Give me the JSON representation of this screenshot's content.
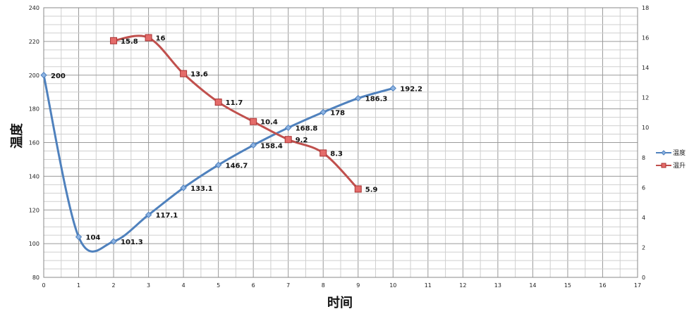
{
  "chart_data": {
    "type": "line",
    "xlabel": "时间",
    "ylabel": "温度",
    "xlim": [
      0,
      17
    ],
    "ylim": [
      80,
      240
    ],
    "y2lim": [
      0,
      18
    ],
    "x_ticks": [
      0,
      1,
      2,
      3,
      4,
      5,
      6,
      7,
      8,
      9,
      10,
      11,
      12,
      13,
      14,
      15,
      16,
      17
    ],
    "y_ticks": [
      80,
      100,
      120,
      140,
      160,
      180,
      200,
      220,
      240
    ],
    "y2_ticks": [
      0,
      2,
      4,
      6,
      8,
      10,
      12,
      14,
      16,
      18
    ],
    "grid": true,
    "legend_position": "right",
    "smooth": true,
    "series": [
      {
        "name": "温度",
        "axis": "left",
        "color": "#4f81bd",
        "marker": "diamond",
        "x": [
          0,
          1,
          2,
          3,
          4,
          5,
          6,
          7,
          8,
          9,
          10
        ],
        "values": [
          200,
          104,
          101.3,
          117.1,
          133.1,
          146.7,
          158.4,
          168.8,
          178,
          186.3,
          192.2
        ],
        "labels": [
          "200",
          "104",
          "101.3",
          "117.1",
          "133.1",
          "146.7",
          "158.4",
          "168.8",
          "178",
          "186.3",
          "192.2"
        ]
      },
      {
        "name": "温升",
        "axis": "right",
        "color": "#c0504d",
        "marker": "square",
        "x": [
          2,
          3,
          4,
          5,
          6,
          7,
          8,
          9
        ],
        "values": [
          15.8,
          16,
          13.6,
          11.7,
          10.4,
          9.2,
          8.3,
          5.9
        ],
        "labels": [
          "15.8",
          "16",
          "13.6",
          "11.7",
          "10.4",
          "9.2",
          "8.3",
          "5.9"
        ]
      }
    ]
  }
}
